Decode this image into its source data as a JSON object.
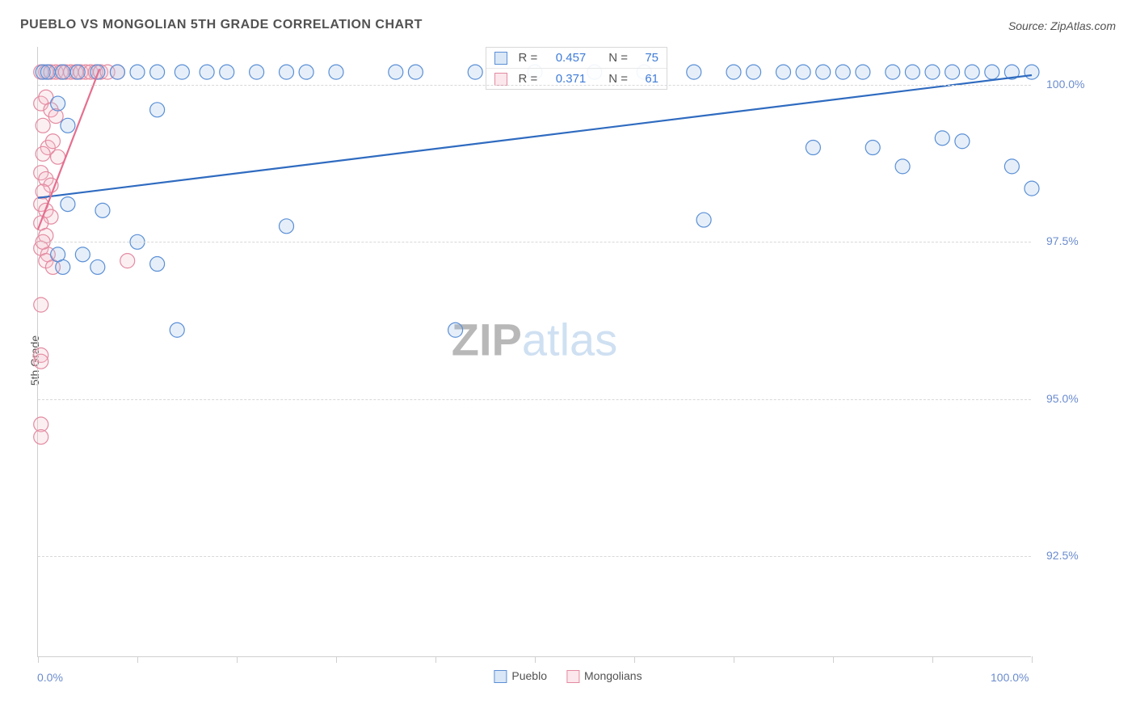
{
  "title": "PUEBLO VS MONGOLIAN 5TH GRADE CORRELATION CHART",
  "source": "Source: ZipAtlas.com",
  "y_axis_label": "5th Grade",
  "watermark_zip": "ZIP",
  "watermark_atlas": "atlas",
  "chart": {
    "type": "scatter",
    "xlim": [
      0,
      100
    ],
    "ylim": [
      90.9,
      100.6
    ],
    "y_ticks": [
      92.5,
      95.0,
      97.5,
      100.0
    ],
    "y_tick_labels": [
      "92.5%",
      "95.0%",
      "97.5%",
      "100.0%"
    ],
    "x_ticks": [
      0,
      10,
      20,
      30,
      40,
      50,
      60,
      70,
      80,
      90,
      100
    ],
    "x_tick_label_left": "0.0%",
    "x_tick_label_right": "100.0%",
    "background_color": "#ffffff",
    "grid_color": "#d8d8d8",
    "axis_color": "#cfcfcf",
    "marker_radius": 9,
    "marker_stroke_width": 1.2,
    "marker_fill_opacity": 0.25,
    "line_width": 2.2,
    "series": [
      {
        "name": "Pueblo",
        "color_stroke": "#5a8fd6",
        "color_fill": "#9cbfe8",
        "line_color": "#2f6bc0",
        "R": "0.457",
        "N": "75",
        "trend": {
          "x1": 0,
          "y1": 98.2,
          "x2": 100,
          "y2": 100.15
        },
        "points": [
          [
            0.5,
            100.2
          ],
          [
            1.0,
            100.2
          ],
          [
            2.5,
            100.2
          ],
          [
            4.0,
            100.2
          ],
          [
            6.0,
            100.2
          ],
          [
            8.0,
            100.2
          ],
          [
            10.0,
            100.2
          ],
          [
            12.0,
            100.2
          ],
          [
            14.5,
            100.2
          ],
          [
            17.0,
            100.2
          ],
          [
            19.0,
            100.2
          ],
          [
            22.0,
            100.2
          ],
          [
            25.0,
            100.2
          ],
          [
            27.0,
            100.2
          ],
          [
            30.0,
            100.2
          ],
          [
            36.0,
            100.2
          ],
          [
            38.0,
            100.2
          ],
          [
            44.0,
            100.2
          ],
          [
            50.0,
            100.2
          ],
          [
            56.0,
            100.2
          ],
          [
            61.0,
            100.2
          ],
          [
            66.0,
            100.2
          ],
          [
            70.0,
            100.2
          ],
          [
            72.0,
            100.2
          ],
          [
            75.0,
            100.2
          ],
          [
            77.0,
            100.2
          ],
          [
            79.0,
            100.2
          ],
          [
            81.0,
            100.2
          ],
          [
            83.0,
            100.2
          ],
          [
            86.0,
            100.2
          ],
          [
            88.0,
            100.2
          ],
          [
            90.0,
            100.2
          ],
          [
            92.0,
            100.2
          ],
          [
            94.0,
            100.2
          ],
          [
            96.0,
            100.2
          ],
          [
            98.0,
            100.2
          ],
          [
            100.0,
            100.2
          ],
          [
            2.0,
            99.7
          ],
          [
            78.0,
            99.0
          ],
          [
            84.0,
            99.0
          ],
          [
            91.0,
            99.15
          ],
          [
            93.0,
            99.1
          ],
          [
            12.0,
            99.6
          ],
          [
            87.0,
            98.7
          ],
          [
            98.0,
            98.7
          ],
          [
            100.0,
            98.35
          ],
          [
            3.0,
            98.1
          ],
          [
            6.5,
            98.0
          ],
          [
            67.0,
            97.85
          ],
          [
            2.0,
            97.3
          ],
          [
            2.5,
            97.1
          ],
          [
            4.5,
            97.3
          ],
          [
            6.0,
            97.1
          ],
          [
            10.0,
            97.5
          ],
          [
            12.0,
            97.15
          ],
          [
            25.0,
            97.75
          ],
          [
            14.0,
            96.1
          ],
          [
            42.0,
            96.1
          ],
          [
            3.0,
            99.35
          ]
        ]
      },
      {
        "name": "Mongolians",
        "color_stroke": "#e38aa0",
        "color_fill": "#f4c0cd",
        "line_color": "#e56f8f",
        "R": "0.371",
        "N": "61",
        "trend": {
          "x1": 0,
          "y1": 97.7,
          "x2": 6.2,
          "y2": 100.25
        },
        "points": [
          [
            0.3,
            100.2
          ],
          [
            0.8,
            100.2
          ],
          [
            1.3,
            100.2
          ],
          [
            1.8,
            100.2
          ],
          [
            2.3,
            100.2
          ],
          [
            2.8,
            100.2
          ],
          [
            3.3,
            100.2
          ],
          [
            3.8,
            100.2
          ],
          [
            4.3,
            100.2
          ],
          [
            4.8,
            100.2
          ],
          [
            5.3,
            100.2
          ],
          [
            5.8,
            100.2
          ],
          [
            6.3,
            100.2
          ],
          [
            7.0,
            100.2
          ],
          [
            8.0,
            100.2
          ],
          [
            0.3,
            99.7
          ],
          [
            0.8,
            99.8
          ],
          [
            1.3,
            99.6
          ],
          [
            1.8,
            99.5
          ],
          [
            0.5,
            99.35
          ],
          [
            1.0,
            99.0
          ],
          [
            1.5,
            99.1
          ],
          [
            0.5,
            98.9
          ],
          [
            2.0,
            98.85
          ],
          [
            0.3,
            98.6
          ],
          [
            0.8,
            98.5
          ],
          [
            1.3,
            98.4
          ],
          [
            0.5,
            98.3
          ],
          [
            0.3,
            98.1
          ],
          [
            0.8,
            98.0
          ],
          [
            1.3,
            97.9
          ],
          [
            0.3,
            97.8
          ],
          [
            0.8,
            97.6
          ],
          [
            0.3,
            97.4
          ],
          [
            1.0,
            97.3
          ],
          [
            0.8,
            97.2
          ],
          [
            1.5,
            97.1
          ],
          [
            0.5,
            97.5
          ],
          [
            0.3,
            96.5
          ],
          [
            9.0,
            97.2
          ],
          [
            0.3,
            95.7
          ],
          [
            0.3,
            95.6
          ],
          [
            0.3,
            94.6
          ],
          [
            0.3,
            94.4
          ]
        ]
      }
    ]
  },
  "legend_box": {
    "r_label": "R =",
    "n_label": "N ="
  },
  "legend_bottom": {
    "series1": "Pueblo",
    "series2": "Mongolians"
  }
}
